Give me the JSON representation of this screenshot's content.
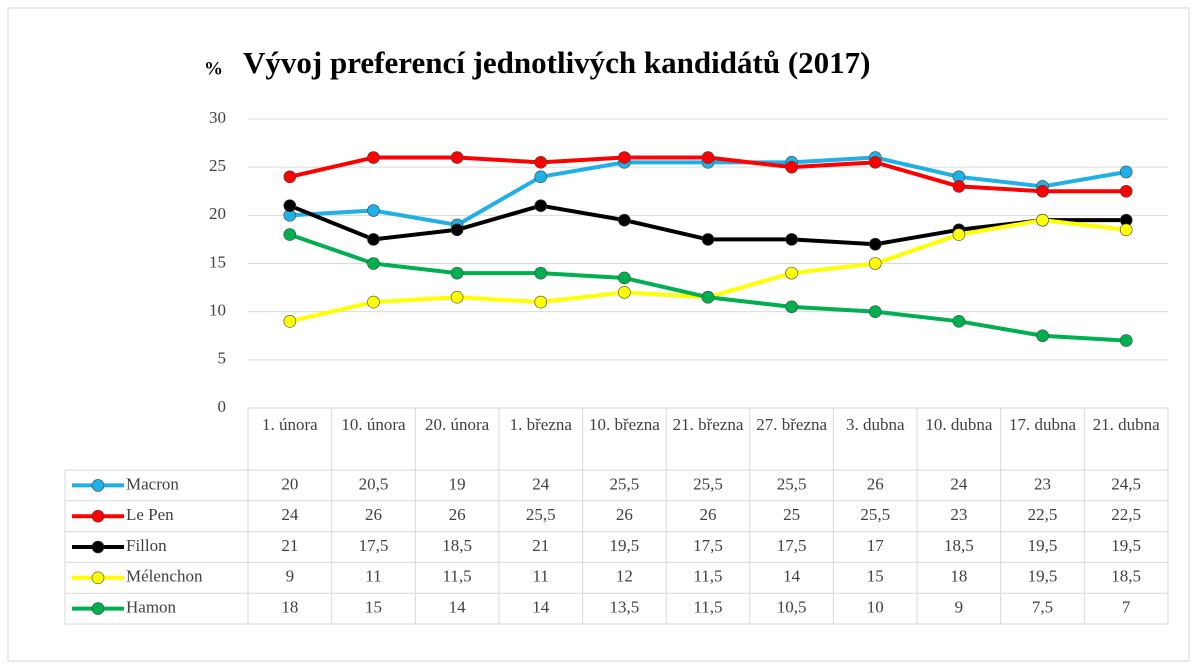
{
  "chart_data": {
    "type": "line",
    "title": "Vývoj preferencí jednotlivých kandidátů (2017)",
    "y_label": "%",
    "categories": [
      "1. února",
      "10. února",
      "20. února",
      "1. března",
      "10. března",
      "21. března",
      "27. března",
      "3. dubna",
      "10. dubna",
      "17. dubna",
      "21. dubna"
    ],
    "series": [
      {
        "name": "Macron",
        "color": "#1fb0e8",
        "values": [
          20,
          20.5,
          19,
          24,
          25.5,
          25.5,
          25.5,
          26,
          24,
          23,
          24.5
        ],
        "value_labels": [
          "20",
          "20,5",
          "19",
          "24",
          "25,5",
          "25,5",
          "25,5",
          "26",
          "24",
          "23",
          "24,5"
        ]
      },
      {
        "name": "Le Pen",
        "color": "#ff0000",
        "values": [
          24,
          26,
          26,
          25.5,
          26,
          26,
          25,
          25.5,
          23,
          22.5,
          22.5
        ],
        "value_labels": [
          "24",
          "26",
          "26",
          "25,5",
          "26",
          "26",
          "25",
          "25,5",
          "23",
          "22,5",
          "22,5"
        ]
      },
      {
        "name": "Fillon",
        "color": "#000000",
        "values": [
          21,
          17.5,
          18.5,
          21,
          19.5,
          17.5,
          17.5,
          17,
          18.5,
          19.5,
          19.5
        ],
        "value_labels": [
          "21",
          "17,5",
          "18,5",
          "21",
          "19,5",
          "17,5",
          "17,5",
          "17",
          "18,5",
          "19,5",
          "19,5"
        ]
      },
      {
        "name": "Mélenchon",
        "color": "#ffff00",
        "values": [
          9,
          11,
          11.5,
          11,
          12,
          11.5,
          14,
          15,
          18,
          19.5,
          18.5
        ],
        "value_labels": [
          "9",
          "11",
          "11,5",
          "11",
          "12",
          "11,5",
          "14",
          "15",
          "18",
          "19,5",
          "18,5"
        ]
      },
      {
        "name": "Hamon",
        "color": "#00b050",
        "values": [
          18,
          15,
          14,
          14,
          13.5,
          11.5,
          10.5,
          10,
          9,
          7.5,
          7
        ],
        "value_labels": [
          "18",
          "15",
          "14",
          "14",
          "13,5",
          "11,5",
          "10,5",
          "10",
          "9",
          "7,5",
          "7"
        ]
      }
    ],
    "ylim": [
      0,
      30
    ],
    "yticks": [
      0,
      5,
      10,
      15,
      20,
      25,
      30
    ],
    "grid": true
  }
}
